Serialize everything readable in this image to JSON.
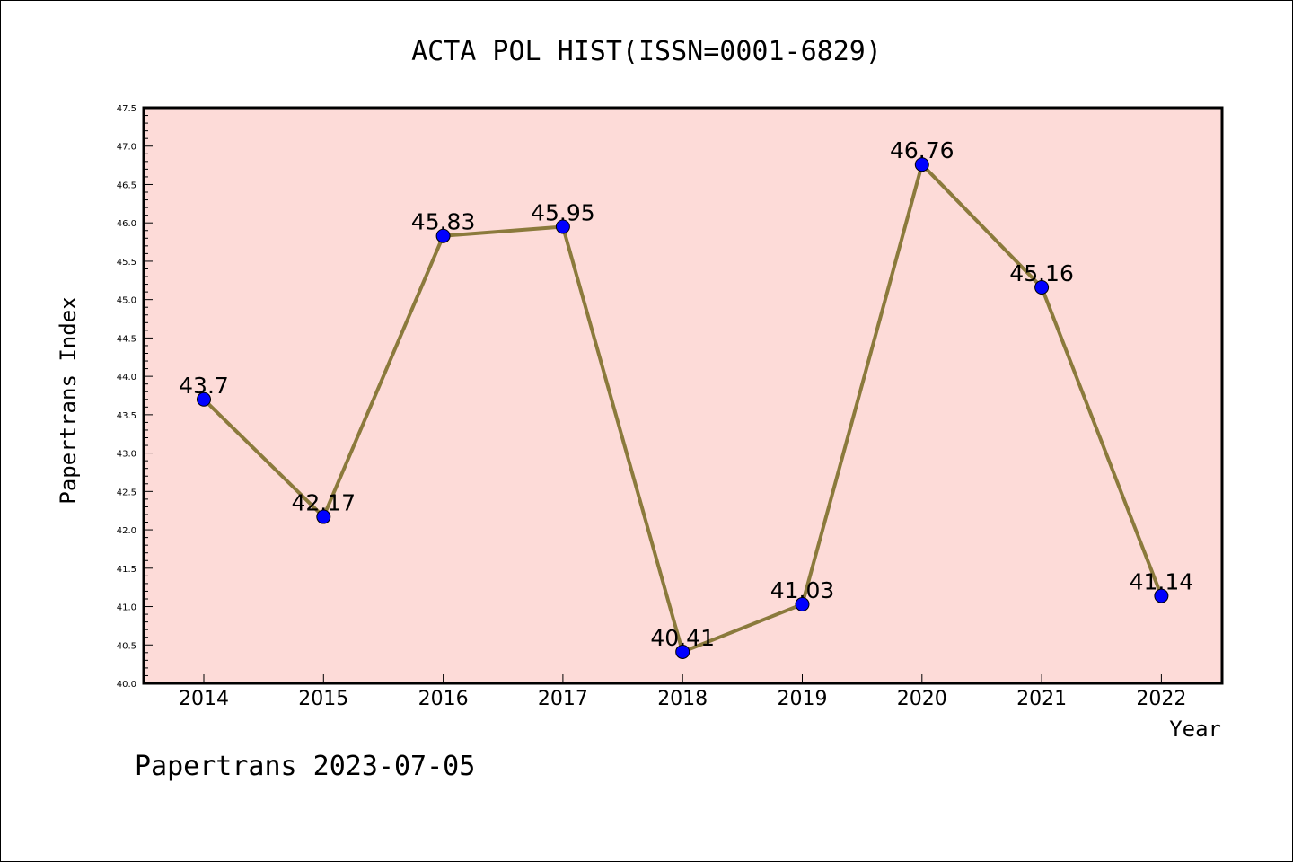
{
  "chart_data": {
    "type": "line",
    "title": "ACTA POL HIST(ISSN=0001-6829)",
    "xlabel": "Year",
    "ylabel": "Papertrans Index",
    "footer": "Papertrans 2023-07-05",
    "categories": [
      "2014",
      "2015",
      "2016",
      "2017",
      "2018",
      "2019",
      "2020",
      "2021",
      "2022"
    ],
    "values": [
      43.7,
      42.17,
      45.83,
      45.95,
      40.41,
      41.03,
      46.76,
      45.16,
      41.14
    ],
    "labels": [
      "43.7",
      "42.17",
      "45.83",
      "45.95",
      "40.41",
      "41.03",
      "46.76",
      "45.16",
      "41.14"
    ],
    "ylim": [
      40.0,
      47.5
    ],
    "yticks": [
      "40.0",
      "40.5",
      "41.0",
      "41.5",
      "42.0",
      "42.5",
      "43.0",
      "43.5",
      "44.0",
      "44.5",
      "45.0",
      "45.5",
      "46.0",
      "46.5",
      "47.0",
      "47.5"
    ],
    "grid": false,
    "colors": {
      "plot_background": "#fddbd8",
      "line": "#8b7a3c",
      "marker": "#0000ff",
      "frame": "#000000"
    }
  }
}
